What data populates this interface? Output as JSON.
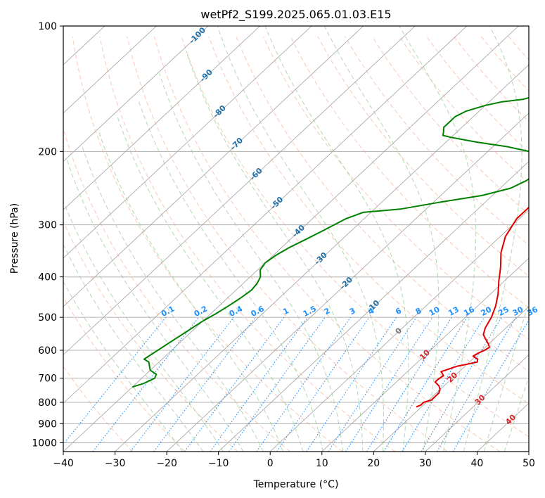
{
  "chart_data": {
    "type": "skew-t",
    "title": "wetPf2_S199.2025.065.01.03.E15",
    "xlabel": "Temperature (°C)",
    "ylabel": "Pressure (hPa)",
    "xlim": [
      -40,
      50
    ],
    "ylim_pressure_hPa": [
      1050,
      100
    ],
    "x_ticks": [
      -40,
      -30,
      -20,
      -10,
      0,
      10,
      20,
      30,
      40,
      50
    ],
    "y_ticks": [
      100,
      200,
      300,
      400,
      500,
      600,
      700,
      800,
      900,
      1000
    ],
    "grid": true,
    "colors": {
      "temperature": "#e00000",
      "dewpoint": "#008000",
      "isotherm_label": "#1f6fa8",
      "mixing_ratio_label": "#1e90ff",
      "moist_label": "#d62728",
      "zero_label": "#777777",
      "dry_adiabat": "#f4a582",
      "moist_adiabat": "#90c890",
      "mixing_ratio_line": "#1e90ff",
      "skew_isotherm": "#a0a0a0"
    },
    "series": [
      {
        "key": "temperature",
        "pressure_hPa": [
          820,
          812,
          800,
          790,
          775,
          760,
          745,
          730,
          715,
          705,
          690,
          675,
          665,
          655,
          648,
          640,
          630,
          620,
          610,
          600,
          590,
          580,
          565,
          550,
          530,
          500,
          470,
          440,
          410,
          380,
          350,
          320,
          290,
          270,
          250,
          230,
          215,
          205,
          200,
          195,
          190,
          185,
          180,
          175,
          170,
          165,
          160,
          155,
          145,
          135,
          125,
          115,
          105,
          100
        ],
        "temperature_C": [
          19,
          19.5,
          19.5,
          20.5,
          20.5,
          20.5,
          20,
          19,
          17.5,
          17.5,
          17.8,
          16.5,
          17.5,
          18.5,
          20,
          21.5,
          21,
          19.5,
          19.8,
          20.5,
          20.8,
          20,
          18.5,
          17,
          16,
          15,
          13.5,
          11.5,
          9,
          6.5,
          3.5,
          1,
          -0.5,
          -0.5,
          -0.3,
          -0.5,
          -1,
          -1.5,
          -1.2,
          -0.5,
          1,
          3,
          6,
          9,
          11.5,
          13,
          14,
          14,
          13.7,
          13.7,
          14,
          15,
          16.5,
          17
        ]
      },
      {
        "key": "dewpoint",
        "pressure_hPa": [
          735,
          720,
          700,
          685,
          670,
          655,
          640,
          630,
          510,
          490,
          470,
          450,
          430,
          415,
          400,
          385,
          370,
          355,
          340,
          325,
          310,
          290,
          280,
          278,
          275,
          265,
          255,
          245,
          235,
          225,
          215,
          205,
          200,
          195,
          190,
          185,
          183,
          180,
          175,
          170,
          165,
          160,
          155,
          152,
          150,
          145,
          140,
          130,
          120,
          110,
          100
        ],
        "dewpoint_C": [
          -40,
          -38.5,
          -37.5,
          -38,
          -40,
          -41,
          -42,
          -43.5,
          -40,
          -39,
          -38.2,
          -37.5,
          -37,
          -37.3,
          -38,
          -39.5,
          -40,
          -39.5,
          -38.5,
          -37,
          -35.5,
          -33.5,
          -31.5,
          -29,
          -25,
          -19,
          -12,
          -8,
          -6.5,
          -6,
          -6.5,
          -8.5,
          -12,
          -17,
          -24,
          -30,
          -32,
          -32.5,
          -33.5,
          -33.5,
          -33.5,
          -32.5,
          -30,
          -27.5,
          -24,
          -21,
          -19,
          -17.5,
          -16.5,
          -15,
          -14
        ]
      }
    ],
    "isotherm_labels": [
      "-100",
      "-90",
      "-80",
      "-70",
      "-60",
      "-50",
      "-40",
      "-30",
      "-20",
      "-10",
      "0",
      "10",
      "20",
      "30",
      "40"
    ],
    "mixing_ratio_labels": [
      "0.1",
      "0.2",
      "0.4",
      "0.6",
      "1",
      "1.5",
      "2",
      "3",
      "4",
      "6",
      "8",
      "10",
      "13",
      "16",
      "20",
      "25",
      "30",
      "36"
    ]
  }
}
